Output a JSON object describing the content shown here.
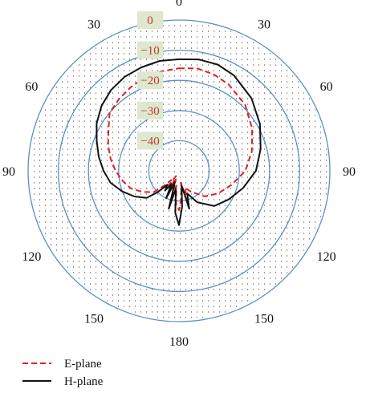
{
  "chart_data": {
    "type": "polar",
    "angle_ticks": [
      "0",
      "30",
      "60",
      "90",
      "120",
      "150",
      "180",
      "150",
      "120",
      "90",
      "60",
      "30"
    ],
    "radial_ticks": [
      0,
      -10,
      -20,
      -30,
      -40
    ],
    "radial_tick_labels": [
      "0",
      "−10",
      "−20",
      "−30",
      "−40"
    ],
    "rlim": [
      -50,
      0
    ],
    "grid": true,
    "legend_position": "bottom-left",
    "series": [
      {
        "name": "E-plane",
        "color": "#e02020",
        "line_style": "dashed",
        "angles": [
          0,
          10,
          20,
          30,
          45,
          60,
          75,
          90,
          105,
          120,
          135,
          150,
          160,
          165,
          170,
          175,
          180,
          185,
          190,
          195,
          200,
          205,
          210,
          215,
          220,
          225,
          230,
          240,
          250,
          260,
          270,
          280,
          290,
          300,
          310,
          320,
          330,
          340,
          350,
          360
        ],
        "values": [
          -16,
          -15.5,
          -16,
          -17,
          -19,
          -22,
          -25,
          -28,
          -32,
          -35,
          -38,
          -42,
          -44,
          -40,
          -46,
          -41,
          -37,
          -39,
          -45,
          -40,
          -47,
          -42,
          -48,
          -44,
          -46,
          -43,
          -39,
          -36,
          -33,
          -31,
          -29,
          -27,
          -25,
          -23,
          -20,
          -19,
          -18,
          -17,
          -16.5,
          -16
        ]
      },
      {
        "name": "H-plane",
        "color": "#111111",
        "line_style": "solid",
        "angles": [
          0,
          10,
          20,
          30,
          45,
          60,
          75,
          90,
          105,
          120,
          135,
          150,
          160,
          165,
          170,
          175,
          180,
          185,
          190,
          195,
          200,
          205,
          210,
          215,
          220,
          225,
          230,
          240,
          250,
          260,
          270,
          280,
          290,
          300,
          310,
          320,
          330,
          340,
          350,
          360
        ],
        "values": [
          -13,
          -12.5,
          -12.5,
          -13.5,
          -16,
          -19,
          -22,
          -24.5,
          -28,
          -31,
          -33.5,
          -38,
          -42,
          -37,
          -45,
          -38,
          -32,
          -36,
          -44,
          -37,
          -46,
          -40,
          -45,
          -42,
          -44,
          -40,
          -36,
          -33,
          -30,
          -27,
          -25,
          -23,
          -21,
          -18.5,
          -16.5,
          -15,
          -14,
          -13.5,
          -13,
          -13
        ]
      }
    ]
  },
  "legend": {
    "e_plane": "E-plane",
    "h_plane": "H-plane"
  }
}
